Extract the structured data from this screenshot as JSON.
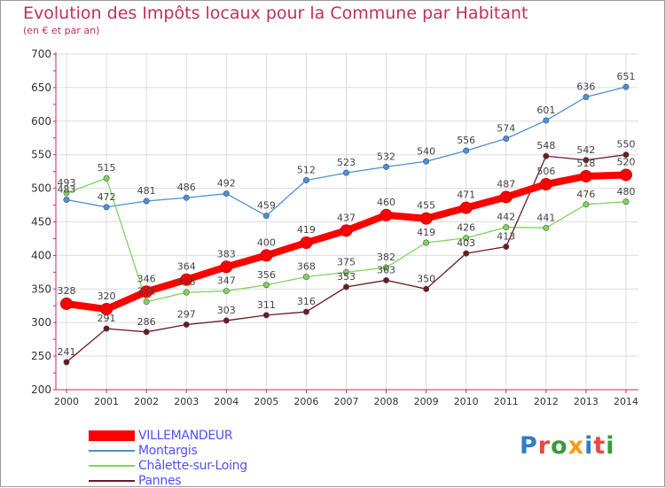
{
  "colors": {
    "title": "#c0305a",
    "axis": "#c0305a",
    "grid": "#dddddd",
    "legend_text": "#5050ff",
    "brand": [
      "#2f7ec2",
      "#e94a3c",
      "#3a9a3a",
      "#f39c12",
      "#2f7ec2",
      "#e94a3c",
      "#3a9a3a"
    ]
  },
  "chart_data": {
    "type": "line",
    "title": "Evolution des Impôts locaux pour la Commune par Habitant",
    "subtitle": "(en € et par an)",
    "xlabel": "",
    "ylabel": "",
    "x": [
      "2000",
      "2001",
      "2002",
      "2003",
      "2004",
      "2005",
      "2006",
      "2007",
      "2008",
      "2009",
      "2010",
      "2011",
      "2012",
      "2013",
      "2014"
    ],
    "ylim": [
      200,
      700
    ],
    "yticks": [
      200,
      250,
      300,
      350,
      400,
      450,
      500,
      550,
      600,
      650,
      700
    ],
    "grid": true,
    "series": [
      {
        "name": "VILLEMANDEUR",
        "color": "#ff0000",
        "emphasis": true,
        "values": [
          328,
          320,
          346,
          364,
          383,
          400,
          419,
          437,
          460,
          455,
          471,
          487,
          506,
          518,
          520
        ]
      },
      {
        "name": "Montargis",
        "color": "#4a90d9",
        "emphasis": false,
        "values": [
          483,
          472,
          481,
          486,
          492,
          459,
          512,
          523,
          532,
          540,
          556,
          574,
          601,
          636,
          651
        ]
      },
      {
        "name": "Châlette-sur-Loing",
        "color": "#7dd65c",
        "emphasis": false,
        "values": [
          493,
          515,
          331,
          345,
          347,
          356,
          368,
          375,
          382,
          419,
          426,
          442,
          441,
          476,
          480
        ]
      },
      {
        "name": "Pannes",
        "color": "#6b1a22",
        "emphasis": false,
        "values": [
          241,
          291,
          286,
          297,
          303,
          311,
          316,
          353,
          363,
          350,
          403,
          413,
          548,
          542,
          550
        ]
      }
    ]
  },
  "legend": {
    "items": [
      "VILLEMANDEUR",
      "Montargis",
      "Châlette-sur-Loing",
      "Pannes"
    ]
  },
  "brand": {
    "letters": [
      "P",
      "r",
      "o",
      "x",
      "i",
      "t",
      "i"
    ]
  }
}
